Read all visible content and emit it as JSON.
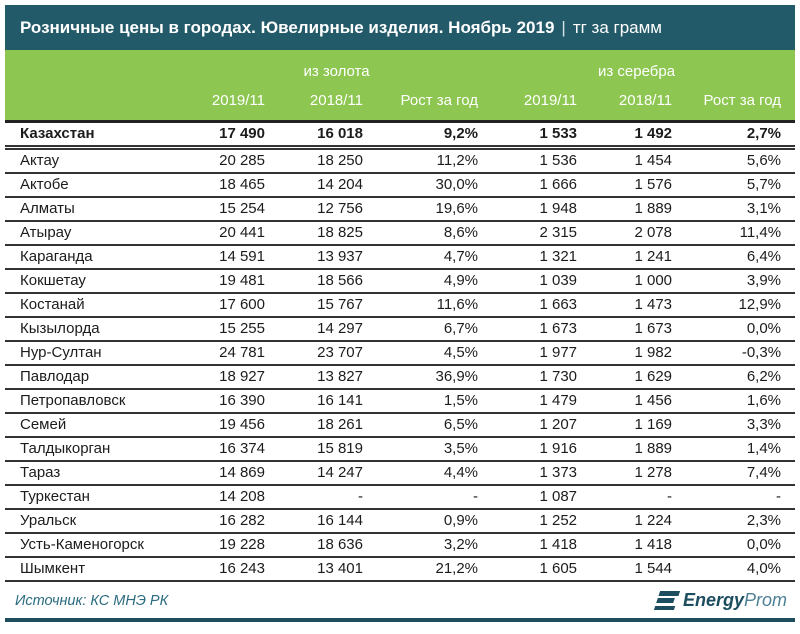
{
  "title": {
    "main": "Розничные цены в городах. Ювелирные изделия. Ноябрь 2019",
    "separator": "|",
    "unit": "тг за грамм"
  },
  "colors": {
    "titlebar_bg": "#235A69",
    "header_bg": "#8DC751",
    "rule_teal": "#1E4D5C",
    "source_text": "#2B6B80",
    "logo_dark": "#1D4E5F",
    "logo_light": "#4E8096",
    "row_border": "#333333",
    "text": "#1c1c1c"
  },
  "chart_data": {
    "type": "table",
    "title": "Розничные цены в городах. Ювелирные изделия. Ноябрь 2019",
    "unit": "тг за грамм",
    "column_groups": [
      {
        "label": "из золота",
        "span": 3
      },
      {
        "label": "из серебра",
        "span": 3
      }
    ],
    "columns": [
      "2019/11",
      "2018/11",
      "Рост за год",
      "2019/11",
      "2018/11",
      "Рост за год"
    ],
    "rows": [
      {
        "city": "Казахстан",
        "bold": true,
        "values": [
          "17 490",
          "16 018",
          "9,2%",
          "1 533",
          "1 492",
          "2,7%"
        ]
      },
      {
        "city": "Актау",
        "bold": false,
        "values": [
          "20 285",
          "18 250",
          "11,2%",
          "1 536",
          "1 454",
          "5,6%"
        ]
      },
      {
        "city": "Актобе",
        "bold": false,
        "values": [
          "18 465",
          "14 204",
          "30,0%",
          "1 666",
          "1 576",
          "5,7%"
        ]
      },
      {
        "city": "Алматы",
        "bold": false,
        "values": [
          "15 254",
          "12 756",
          "19,6%",
          "1 948",
          "1 889",
          "3,1%"
        ]
      },
      {
        "city": "Атырау",
        "bold": false,
        "values": [
          "20 441",
          "18 825",
          "8,6%",
          "2 315",
          "2 078",
          "11,4%"
        ]
      },
      {
        "city": "Караганда",
        "bold": false,
        "values": [
          "14 591",
          "13 937",
          "4,7%",
          "1 321",
          "1 241",
          "6,4%"
        ]
      },
      {
        "city": "Кокшетау",
        "bold": false,
        "values": [
          "19 481",
          "18 566",
          "4,9%",
          "1 039",
          "1 000",
          "3,9%"
        ]
      },
      {
        "city": "Костанай",
        "bold": false,
        "values": [
          "17 600",
          "15 767",
          "11,6%",
          "1 663",
          "1 473",
          "12,9%"
        ]
      },
      {
        "city": "Кызылорда",
        "bold": false,
        "values": [
          "15 255",
          "14 297",
          "6,7%",
          "1 673",
          "1 673",
          "0,0%"
        ]
      },
      {
        "city": "Нур-Султан",
        "bold": false,
        "values": [
          "24 781",
          "23 707",
          "4,5%",
          "1 977",
          "1 982",
          "-0,3%"
        ]
      },
      {
        "city": "Павлодар",
        "bold": false,
        "values": [
          "18 927",
          "13 827",
          "36,9%",
          "1 730",
          "1 629",
          "6,2%"
        ]
      },
      {
        "city": "Петропавловск",
        "bold": false,
        "values": [
          "16 390",
          "16 141",
          "1,5%",
          "1 479",
          "1 456",
          "1,6%"
        ]
      },
      {
        "city": "Семей",
        "bold": false,
        "values": [
          "19 456",
          "18 261",
          "6,5%",
          "1 207",
          "1 169",
          "3,3%"
        ]
      },
      {
        "city": "Талдыкорган",
        "bold": false,
        "values": [
          "16 374",
          "15 819",
          "3,5%",
          "1 916",
          "1 889",
          "1,4%"
        ]
      },
      {
        "city": "Тараз",
        "bold": false,
        "values": [
          "14 869",
          "14 247",
          "4,4%",
          "1 373",
          "1 278",
          "7,4%"
        ]
      },
      {
        "city": "Туркестан",
        "bold": false,
        "values": [
          "14 208",
          "-",
          "-",
          "1 087",
          "-",
          "-"
        ]
      },
      {
        "city": "Уральск",
        "bold": false,
        "values": [
          "16 282",
          "16 144",
          "0,9%",
          "1 252",
          "1 224",
          "2,3%"
        ]
      },
      {
        "city": "Усть-Каменогорск",
        "bold": false,
        "values": [
          "19 228",
          "18 636",
          "3,2%",
          "1 418",
          "1 418",
          "0,0%"
        ]
      },
      {
        "city": "Шымкент",
        "bold": false,
        "values": [
          "16 243",
          "13 401",
          "21,2%",
          "1 605",
          "1 544",
          "4,0%"
        ]
      }
    ]
  },
  "footer": {
    "source": "Источник: КС МНЭ РК",
    "logo": {
      "name": "EnergyProm",
      "bold_part": "Energy",
      "light_part": "Prom"
    }
  }
}
